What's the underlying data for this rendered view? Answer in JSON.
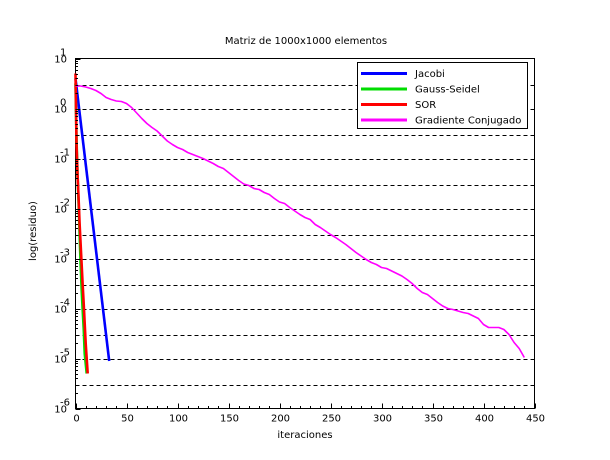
{
  "chart_data": {
    "type": "line",
    "title": "Matriz de 1000x1000 elementos",
    "xlabel": "iteraciones",
    "ylabel": "log(residuo)",
    "xlim": [
      0,
      450
    ],
    "ylim": [
      -6,
      1
    ],
    "y_scale": "log10",
    "x_ticks": [
      "0",
      "50",
      "100",
      "150",
      "200",
      "250",
      "300",
      "350",
      "400",
      "450"
    ],
    "y_ticks": [
      {
        "base": "10",
        "exp": "1"
      },
      {
        "base": "10",
        "exp": "0"
      },
      {
        "base": "10",
        "exp": "-1"
      },
      {
        "base": "10",
        "exp": "-2"
      },
      {
        "base": "10",
        "exp": "-3"
      },
      {
        "base": "10",
        "exp": "-4"
      },
      {
        "base": "10",
        "exp": "-5"
      },
      {
        "base": "10",
        "exp": "-6"
      }
    ],
    "grid": "horizontal-dashed",
    "legend_position": "top-right",
    "series": [
      {
        "name": "Jacobi",
        "color": "#0000ff",
        "x": [
          0,
          33
        ],
        "y": [
          0.6,
          -5.05
        ]
      },
      {
        "name": "Gauss-Seidel",
        "color": "#00dd00",
        "x": [
          0,
          1,
          2,
          3,
          4,
          5,
          6,
          7,
          8,
          9,
          10,
          11
        ],
        "y": [
          0.5,
          -0.6,
          -1.3,
          -1.9,
          -2.5,
          -3.1,
          -3.6,
          -4.0,
          -4.4,
          -4.9,
          -5.1,
          -5.3
        ]
      },
      {
        "name": "SOR",
        "color": "#ff0000",
        "x": [
          0,
          1,
          2,
          3,
          4,
          5,
          6,
          7,
          8,
          9,
          10,
          11,
          12
        ],
        "y": [
          0.7,
          -0.7,
          -1.3,
          -1.8,
          -2.3,
          -2.7,
          -3.1,
          -3.5,
          -3.9,
          -4.3,
          -4.7,
          -5.0,
          -5.3
        ]
      },
      {
        "name": "Gradiente Conjugado",
        "color": "#ff00ff",
        "x": [
          0,
          5,
          10,
          15,
          20,
          25,
          30,
          35,
          40,
          45,
          50,
          55,
          60,
          65,
          70,
          75,
          80,
          85,
          90,
          95,
          100,
          105,
          110,
          115,
          120,
          125,
          130,
          135,
          140,
          145,
          150,
          155,
          160,
          165,
          170,
          175,
          180,
          185,
          190,
          195,
          200,
          205,
          210,
          215,
          220,
          225,
          230,
          235,
          240,
          245,
          250,
          255,
          260,
          265,
          270,
          275,
          280,
          285,
          290,
          295,
          300,
          305,
          310,
          315,
          320,
          325,
          330,
          335,
          340,
          345,
          350,
          355,
          360,
          365,
          370,
          375,
          380,
          385,
          390,
          395,
          400,
          405,
          410,
          415,
          420,
          425,
          430,
          435,
          440
        ],
        "y": [
          0.45,
          0.45,
          0.43,
          0.4,
          0.36,
          0.3,
          0.22,
          0.18,
          0.15,
          0.14,
          0.1,
          0.02,
          -0.09,
          -0.2,
          -0.3,
          -0.38,
          -0.45,
          -0.55,
          -0.65,
          -0.72,
          -0.78,
          -0.82,
          -0.88,
          -0.92,
          -0.96,
          -1.0,
          -1.05,
          -1.1,
          -1.16,
          -1.2,
          -1.28,
          -1.36,
          -1.44,
          -1.51,
          -1.54,
          -1.6,
          -1.62,
          -1.68,
          -1.72,
          -1.8,
          -1.87,
          -1.9,
          -1.98,
          -2.05,
          -2.12,
          -2.18,
          -2.22,
          -2.32,
          -2.38,
          -2.45,
          -2.52,
          -2.58,
          -2.65,
          -2.72,
          -2.8,
          -2.88,
          -2.95,
          -3.02,
          -3.08,
          -3.12,
          -3.18,
          -3.2,
          -3.25,
          -3.3,
          -3.35,
          -3.42,
          -3.5,
          -3.6,
          -3.68,
          -3.72,
          -3.8,
          -3.88,
          -3.95,
          -4.0,
          -4.02,
          -4.05,
          -4.08,
          -4.1,
          -4.15,
          -4.2,
          -4.32,
          -4.38,
          -4.38,
          -4.38,
          -4.42,
          -4.52,
          -4.68,
          -4.8,
          -4.98
        ]
      }
    ]
  }
}
